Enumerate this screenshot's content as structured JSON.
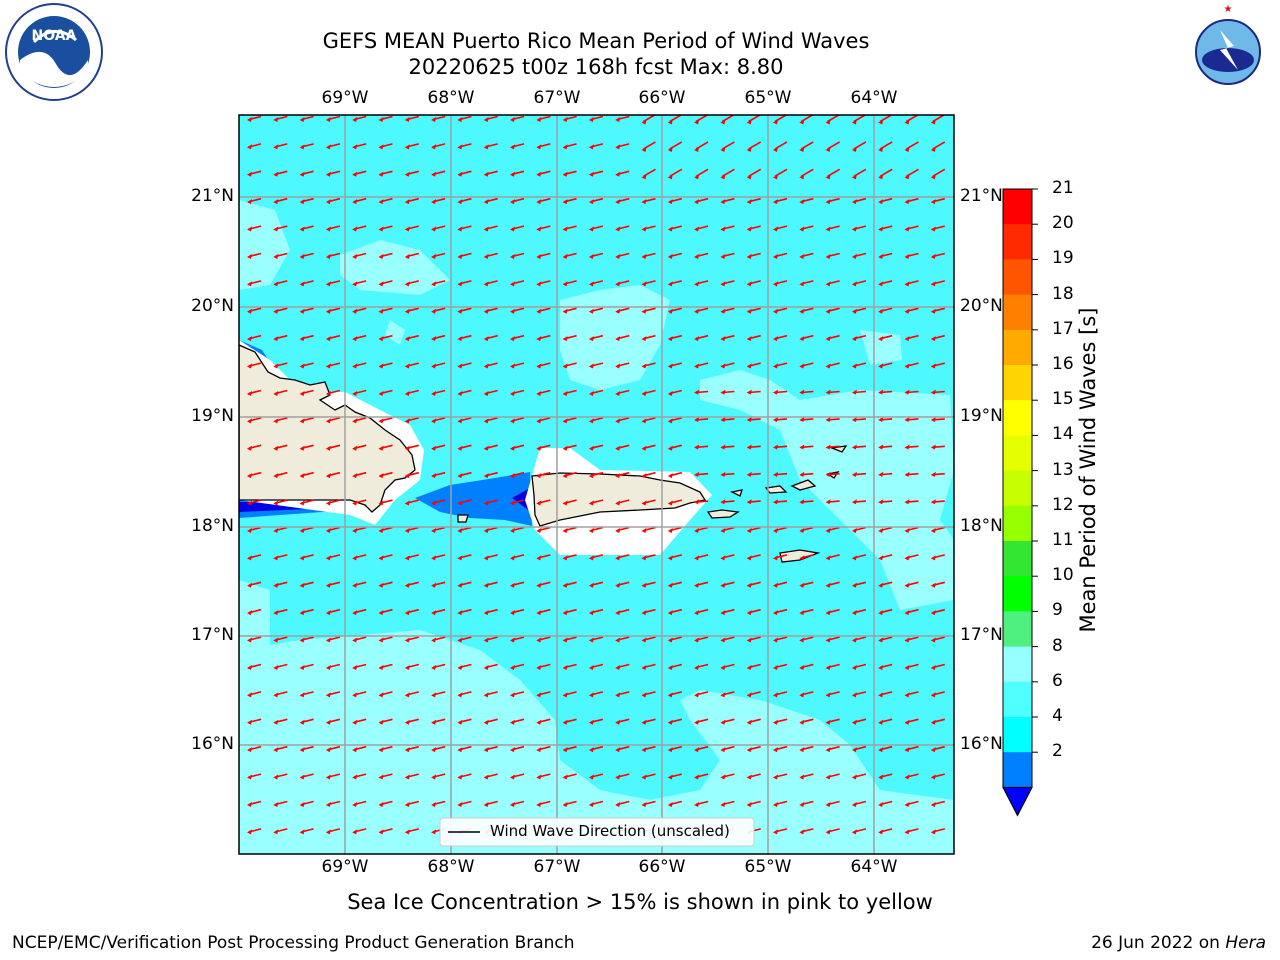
{
  "title": {
    "line1": "GEFS MEAN Puerto Rico Mean Period of Wind Waves",
    "line2": "20220625 t00z 168h fcst   Max: 8.80"
  },
  "logos": {
    "left": "NOAA",
    "right": "NATIONAL WEATHER SERVICE"
  },
  "axes": {
    "lon_labels": [
      "69°W",
      "68°W",
      "67°W",
      "66°W",
      "65°W",
      "64°W"
    ],
    "lat_labels": [
      "21°N",
      "20°N",
      "19°N",
      "18°N",
      "17°N",
      "16°N"
    ]
  },
  "legend": {
    "label": "Wind Wave Direction (unscaled)"
  },
  "colorbar": {
    "label": "Mean Period of Wind Waves [s]",
    "ticks": [
      "21",
      "20",
      "19",
      "18",
      "17",
      "16",
      "15",
      "14",
      "13",
      "12",
      "11",
      "10",
      "9",
      "8",
      "6",
      "4",
      "2"
    ],
    "colors": [
      "#ff0000",
      "#ff2a00",
      "#ff5500",
      "#ff8000",
      "#ffaa00",
      "#ffd400",
      "#ffff00",
      "#e6ff00",
      "#c8ff00",
      "#96ff00",
      "#32e632",
      "#00ff00",
      "#50f080",
      "#96ffff",
      "#50ffff",
      "#00ffff",
      "#0080ff"
    ],
    "under_color": "#0000ff"
  },
  "field_colors": {
    "ocean_main": "#4df9ff",
    "ocean_light": "#99ffff",
    "ocean_deep": "#0080ff",
    "ocean_deepest": "#0000e6",
    "land": "#efecdc",
    "arrow": "#ff0000"
  },
  "note": "Sea Ice Concentration > 15% is shown in pink to yellow",
  "footer": {
    "left": "NCEP/EMC/Verification Post Processing Product Generation Branch",
    "right_date": "26 Jun 2022 on ",
    "right_host": "Hera"
  }
}
